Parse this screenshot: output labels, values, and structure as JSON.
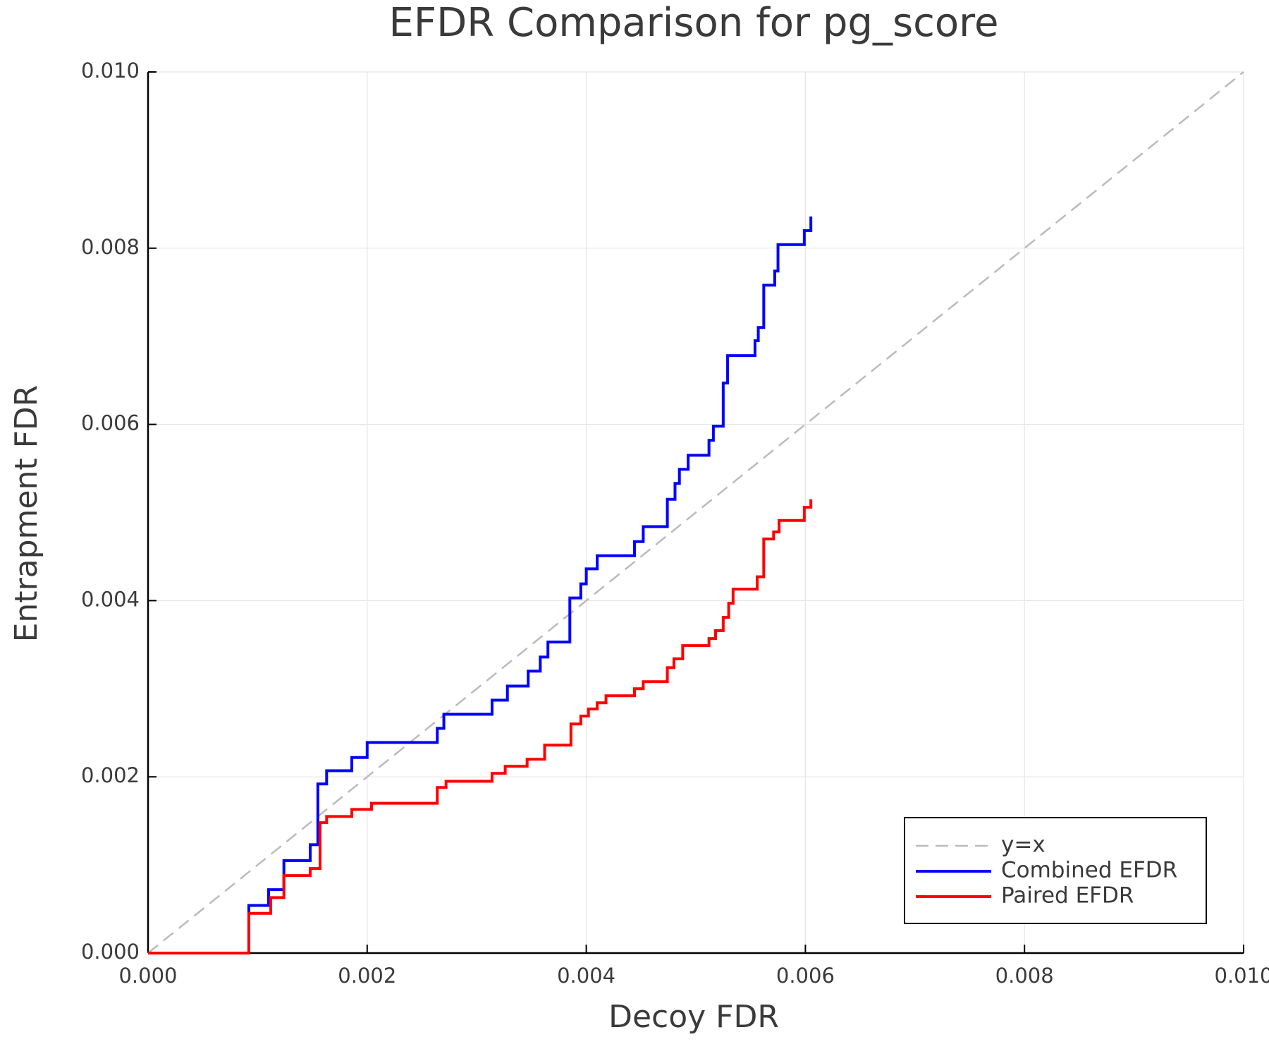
{
  "chart_data": {
    "type": "line",
    "title": "EFDR Comparison for pg_score",
    "x_label": "Decoy FDR",
    "y_label": "Entrapment FDR",
    "xlim": [
      0,
      0.01
    ],
    "ylim": [
      0,
      0.01
    ],
    "xticks": [
      {
        "value": 0,
        "label": "0.000"
      },
      {
        "value": 0.002,
        "label": "0.002"
      },
      {
        "value": 0.004,
        "label": "0.004"
      },
      {
        "value": 0.006,
        "label": "0.006"
      },
      {
        "value": 0.008,
        "label": "0.008"
      },
      {
        "value": 0.01,
        "label": "0.010"
      }
    ],
    "yticks": [
      {
        "value": 0,
        "label": "0.000"
      },
      {
        "value": 0.002,
        "label": "0.002"
      },
      {
        "value": 0.004,
        "label": "0.004"
      },
      {
        "value": 0.006,
        "label": "0.006"
      },
      {
        "value": 0.008,
        "label": "0.008"
      },
      {
        "value": 0.01,
        "label": "0.010"
      }
    ],
    "grid": true,
    "legend": "bottom-right",
    "series": [
      {
        "name": "y=x",
        "color": "#bbbbbb",
        "dashed": true,
        "step": false,
        "x": [
          0,
          0.01
        ],
        "values": [
          0,
          0.01
        ]
      },
      {
        "name": "Combined EFDR",
        "color": "#0000ff",
        "dashed": false,
        "step": true,
        "x": [
          0,
          0.00092,
          0.0011,
          0.00124,
          0.00148,
          0.00155,
          0.00163,
          0.00186,
          0.002,
          0.00264,
          0.0027,
          0.00314,
          0.00328,
          0.00347,
          0.00358,
          0.00365,
          0.00385,
          0.00395,
          0.004,
          0.0041,
          0.00444,
          0.00452,
          0.00474,
          0.00481,
          0.00485,
          0.00493,
          0.00512,
          0.00516,
          0.00525,
          0.00529,
          0.00554,
          0.00557,
          0.00562,
          0.00572,
          0.00575,
          0.00599,
          0.00605
        ],
        "values": [
          0,
          0.00054,
          0.00072,
          0.00105,
          0.00123,
          0.00192,
          0.00207,
          0.00222,
          0.00239,
          0.00255,
          0.00271,
          0.00287,
          0.00303,
          0.0032,
          0.00336,
          0.00353,
          0.00403,
          0.00419,
          0.00436,
          0.00451,
          0.00467,
          0.00484,
          0.00515,
          0.00533,
          0.00549,
          0.00565,
          0.00582,
          0.00598,
          0.00647,
          0.00678,
          0.00695,
          0.0071,
          0.00758,
          0.00774,
          0.00804,
          0.0082,
          0.00836
        ]
      },
      {
        "name": "Paired EFDR",
        "color": "#ff0000",
        "dashed": false,
        "step": true,
        "x": [
          0,
          0.00092,
          0.00112,
          0.00124,
          0.00148,
          0.00157,
          0.00163,
          0.00186,
          0.00204,
          0.00264,
          0.00272,
          0.00314,
          0.00326,
          0.00346,
          0.00362,
          0.00386,
          0.00395,
          0.00402,
          0.0041,
          0.00418,
          0.00444,
          0.00452,
          0.00474,
          0.0048,
          0.00488,
          0.00512,
          0.00518,
          0.00525,
          0.0053,
          0.00534,
          0.00556,
          0.00562,
          0.00571,
          0.00576,
          0.00599,
          0.00605
        ],
        "values": [
          0,
          0.00045,
          0.00063,
          0.00088,
          0.00096,
          0.00148,
          0.00155,
          0.00163,
          0.0017,
          0.00188,
          0.00195,
          0.00204,
          0.00212,
          0.0022,
          0.00236,
          0.0026,
          0.00269,
          0.00277,
          0.00284,
          0.00292,
          0.003,
          0.00308,
          0.00324,
          0.00334,
          0.00349,
          0.00357,
          0.00366,
          0.00381,
          0.00397,
          0.00413,
          0.00427,
          0.0047,
          0.00478,
          0.00491,
          0.00506,
          0.00515
        ]
      }
    ]
  }
}
